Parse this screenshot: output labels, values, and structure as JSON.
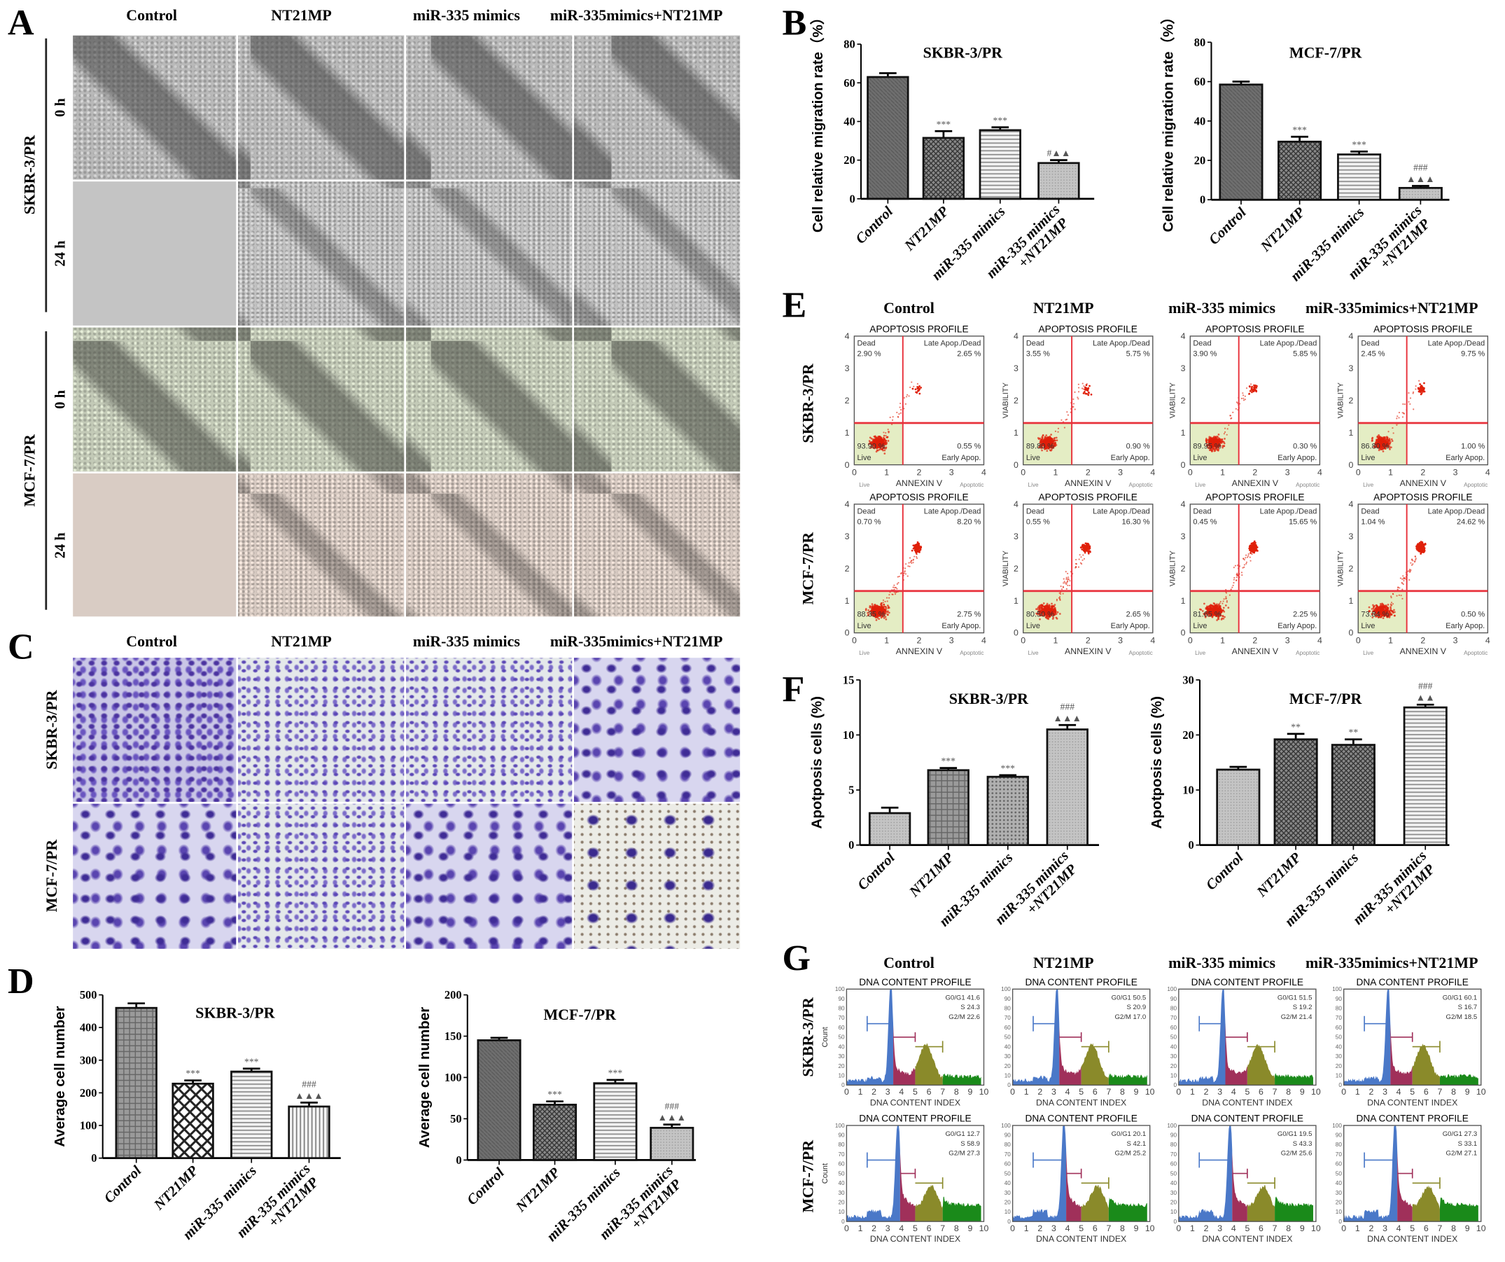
{
  "panel_letters": {
    "A": "A",
    "B": "B",
    "C": "C",
    "D": "D",
    "E": "E",
    "F": "F",
    "G": "G"
  },
  "groups": [
    "Control",
    "NT21MP",
    "miR-335 mimics",
    "miR-335mimics+NT21MP"
  ],
  "cell_lines": [
    "SKBR-3/PR",
    "MCF-7/PR"
  ],
  "panelA": {
    "times": [
      "0 h",
      "24 h"
    ]
  },
  "panelE": {
    "plot_title": "APOPTOSIS PROFILE",
    "y_axis": "VIABILITY",
    "x_axis": "ANNEXIN V",
    "x_left": "Live",
    "x_right": "Apoptotic",
    "quadrants": {
      "ul": "Dead",
      "ur": "Late Apop./Dead",
      "ll": "Live",
      "lr": "Early Apop."
    },
    "axis_ticks": [
      "0",
      "1",
      "2",
      "3",
      "4"
    ],
    "data": [
      [
        {
          "dead": "2.90 %",
          "late": "2.65 %",
          "live": "93.90 %",
          "early": "0.55 %"
        },
        {
          "dead": "3.55 %",
          "late": "5.75 %",
          "live": "89.80 %",
          "early": "0.90 %"
        },
        {
          "dead": "3.90 %",
          "late": "5.85 %",
          "live": "89.95 %",
          "early": "0.30 %"
        },
        {
          "dead": "2.45 %",
          "late": "9.75 %",
          "live": "86.80 %",
          "early": "1.00 %"
        }
      ],
      [
        {
          "dead": "0.70 %",
          "late": "8.20 %",
          "live": "88.35 %",
          "early": "2.75 %"
        },
        {
          "dead": "0.55 %",
          "late": "16.30 %",
          "live": "80.50 %",
          "early": "2.65 %"
        },
        {
          "dead": "0.45 %",
          "late": "15.65 %",
          "live": "81.65 %",
          "early": "2.25 %"
        },
        {
          "dead": "1.04 %",
          "late": "24.62 %",
          "live": "73.84 %",
          "early": "0.50 %"
        }
      ]
    ]
  },
  "panelG": {
    "plot_title": "DNA CONTENT PROFILE",
    "x_axis": "DNA CONTENT INDEX",
    "y_axis": "Count",
    "phase_labels": [
      "G0/G1",
      "S",
      "G2/M"
    ],
    "x_ticks": [
      "0",
      "1",
      "2",
      "3",
      "4",
      "5",
      "6",
      "7",
      "8",
      "9",
      "10"
    ],
    "y_ticks": [
      "0",
      "10",
      "20",
      "30",
      "40",
      "50",
      "60",
      "70",
      "80",
      "90",
      "100"
    ],
    "data": [
      [
        [
          41.6,
          24.3,
          22.6
        ],
        [
          50.5,
          20.9,
          17.0
        ],
        [
          51.5,
          19.2,
          21.4
        ],
        [
          60.1,
          16.7,
          18.5
        ]
      ],
      [
        [
          12.7,
          58.9,
          27.3
        ],
        [
          20.1,
          42.1,
          25.2
        ],
        [
          19.5,
          43.3,
          25.6
        ],
        [
          27.3,
          33.1,
          27.1
        ]
      ]
    ]
  },
  "colors": {
    "quadrant_line": "#e8303a",
    "live_fill": "#e4edc4",
    "dots": "#e0200a",
    "g1": "#4a78c8",
    "s": "#a0305a",
    "g2m": "#8a8a2a",
    "debris": "#1a8a1a",
    "violet": "#4b33a0"
  },
  "chart_data": [
    {
      "type": "bar",
      "panel": "B",
      "title": "SKBR-3/PR",
      "ylabel": "Cell relative  migration rate（%）",
      "categories": [
        "Control",
        "NT21MP",
        "miR-335 mimics",
        "miR-335 mimics\n+NT21MP"
      ],
      "values": [
        63,
        31.5,
        35.5,
        18.5
      ],
      "errors": [
        2,
        3.5,
        1.5,
        1.5
      ],
      "annotations": [
        "",
        "***",
        "***",
        "#▲▲"
      ],
      "ylim": [
        0,
        80
      ],
      "yticks": [
        "0",
        "20",
        "40",
        "60",
        "80"
      ]
    },
    {
      "type": "bar",
      "panel": "B",
      "title": "MCF-7/PR",
      "ylabel": "Cell relative  migration rate（%）",
      "categories": [
        "Control",
        "NT21MP",
        "miR-335 mimics",
        "miR-335 mimics\n+NT21MP"
      ],
      "values": [
        58.5,
        29.5,
        23,
        6
      ],
      "errors": [
        1.5,
        2.5,
        1.5,
        1
      ],
      "annotations": [
        "",
        "***",
        "***",
        "###\n▲▲▲"
      ],
      "ylim": [
        0,
        80
      ],
      "yticks": [
        "0",
        "20",
        "40",
        "60",
        "80"
      ]
    },
    {
      "type": "bar",
      "panel": "D",
      "title": "SKBR-3/PR",
      "ylabel": "Average cell number",
      "categories": [
        "Control",
        "NT21MP",
        "miR-335 mimics",
        "miR-335 mimics\n+NT21MP"
      ],
      "values": [
        460,
        228,
        265,
        158
      ],
      "errors": [
        14,
        10,
        9,
        12
      ],
      "annotations": [
        "",
        "***",
        "***",
        "###\n▲▲▲"
      ],
      "ylim": [
        0,
        500
      ],
      "yticks": [
        "0",
        "100",
        "200",
        "300",
        "400",
        "500"
      ]
    },
    {
      "type": "bar",
      "panel": "D",
      "title": "MCF-7/PR",
      "ylabel": "Average cell number",
      "categories": [
        "Control",
        "NT21MP",
        "miR-335 mimics",
        "miR-335 mimics\n+NT21MP"
      ],
      "values": [
        145,
        67,
        93,
        39
      ],
      "errors": [
        3,
        4,
        4,
        4
      ],
      "annotations": [
        "",
        "***",
        "***",
        "###\n▲▲▲"
      ],
      "ylim": [
        0,
        200
      ],
      "yticks": [
        "0",
        "50",
        "100",
        "150",
        "200"
      ]
    },
    {
      "type": "bar",
      "panel": "F",
      "title": "SKBR-3/PR",
      "ylabel": "Apotposis cells (%)",
      "categories": [
        "Control",
        "NT21MP",
        "miR-335 mimics",
        "miR-335 mimics\n+NT21MP"
      ],
      "values": [
        2.9,
        6.8,
        6.2,
        10.5
      ],
      "errors": [
        0.5,
        0.2,
        0.15,
        0.4
      ],
      "annotations": [
        "",
        "***",
        "***",
        "###\n▲▲▲"
      ],
      "ylim": [
        0,
        15
      ],
      "yticks": [
        "0",
        "5",
        "10",
        "15"
      ]
    },
    {
      "type": "bar",
      "panel": "F",
      "title": "MCF-7/PR",
      "ylabel": "Apotposis cells (%)",
      "categories": [
        "Control",
        "NT21MP",
        "miR-335 mimics",
        "miR-335 mimics\n+NT21MP"
      ],
      "values": [
        13.7,
        19.2,
        18.2,
        25
      ],
      "errors": [
        0.5,
        1,
        1,
        0.5
      ],
      "annotations": [
        "",
        "**",
        "**",
        "###\n▲▲"
      ],
      "ylim": [
        0,
        30
      ],
      "yticks": [
        "0",
        "10",
        "20",
        "30"
      ]
    }
  ]
}
